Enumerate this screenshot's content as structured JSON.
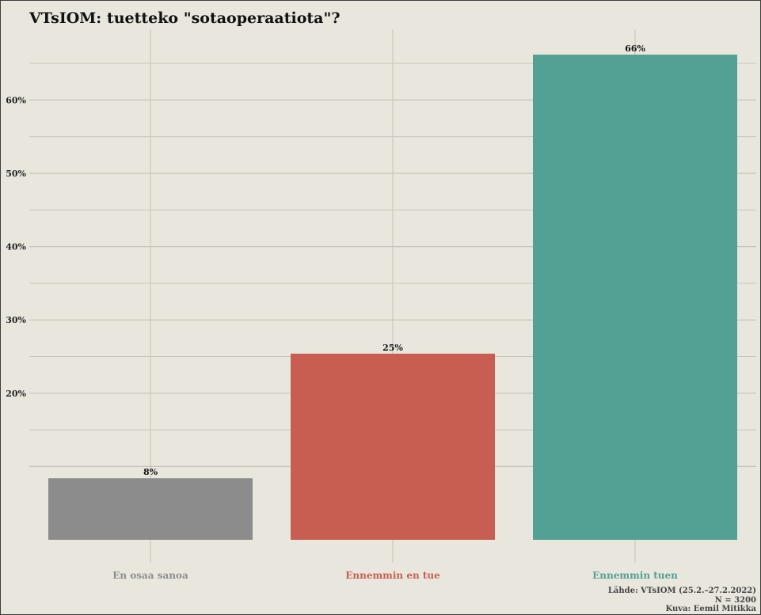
{
  "chart_data": {
    "type": "bar",
    "title": "VTsIOM: tuetteko \"sotaoperaatiota\"?",
    "categories": [
      "En osaa sanoa",
      "Ennemmin en tue",
      "Ennemmin tuen"
    ],
    "values": [
      8.4,
      25.4,
      66.2
    ],
    "data_labels": [
      "8%",
      "25%",
      "66%"
    ],
    "colors": [
      "#8c8c8c",
      "#c85e52",
      "#52a194"
    ],
    "ylim": [
      0,
      70
    ],
    "yticks": [
      20,
      30,
      40,
      50,
      60
    ],
    "ytick_labels": [
      "20%",
      "30%",
      "40%",
      "50%",
      "60%"
    ],
    "xlabel": "",
    "ylabel": "",
    "grid": true,
    "background": "#e9e7dd"
  },
  "caption": {
    "source": "Lähde: VTsIOM (25.2.–27.2.2022)",
    "n": "N = 3200",
    "author": "Kuva: Eemil Mitikka"
  }
}
